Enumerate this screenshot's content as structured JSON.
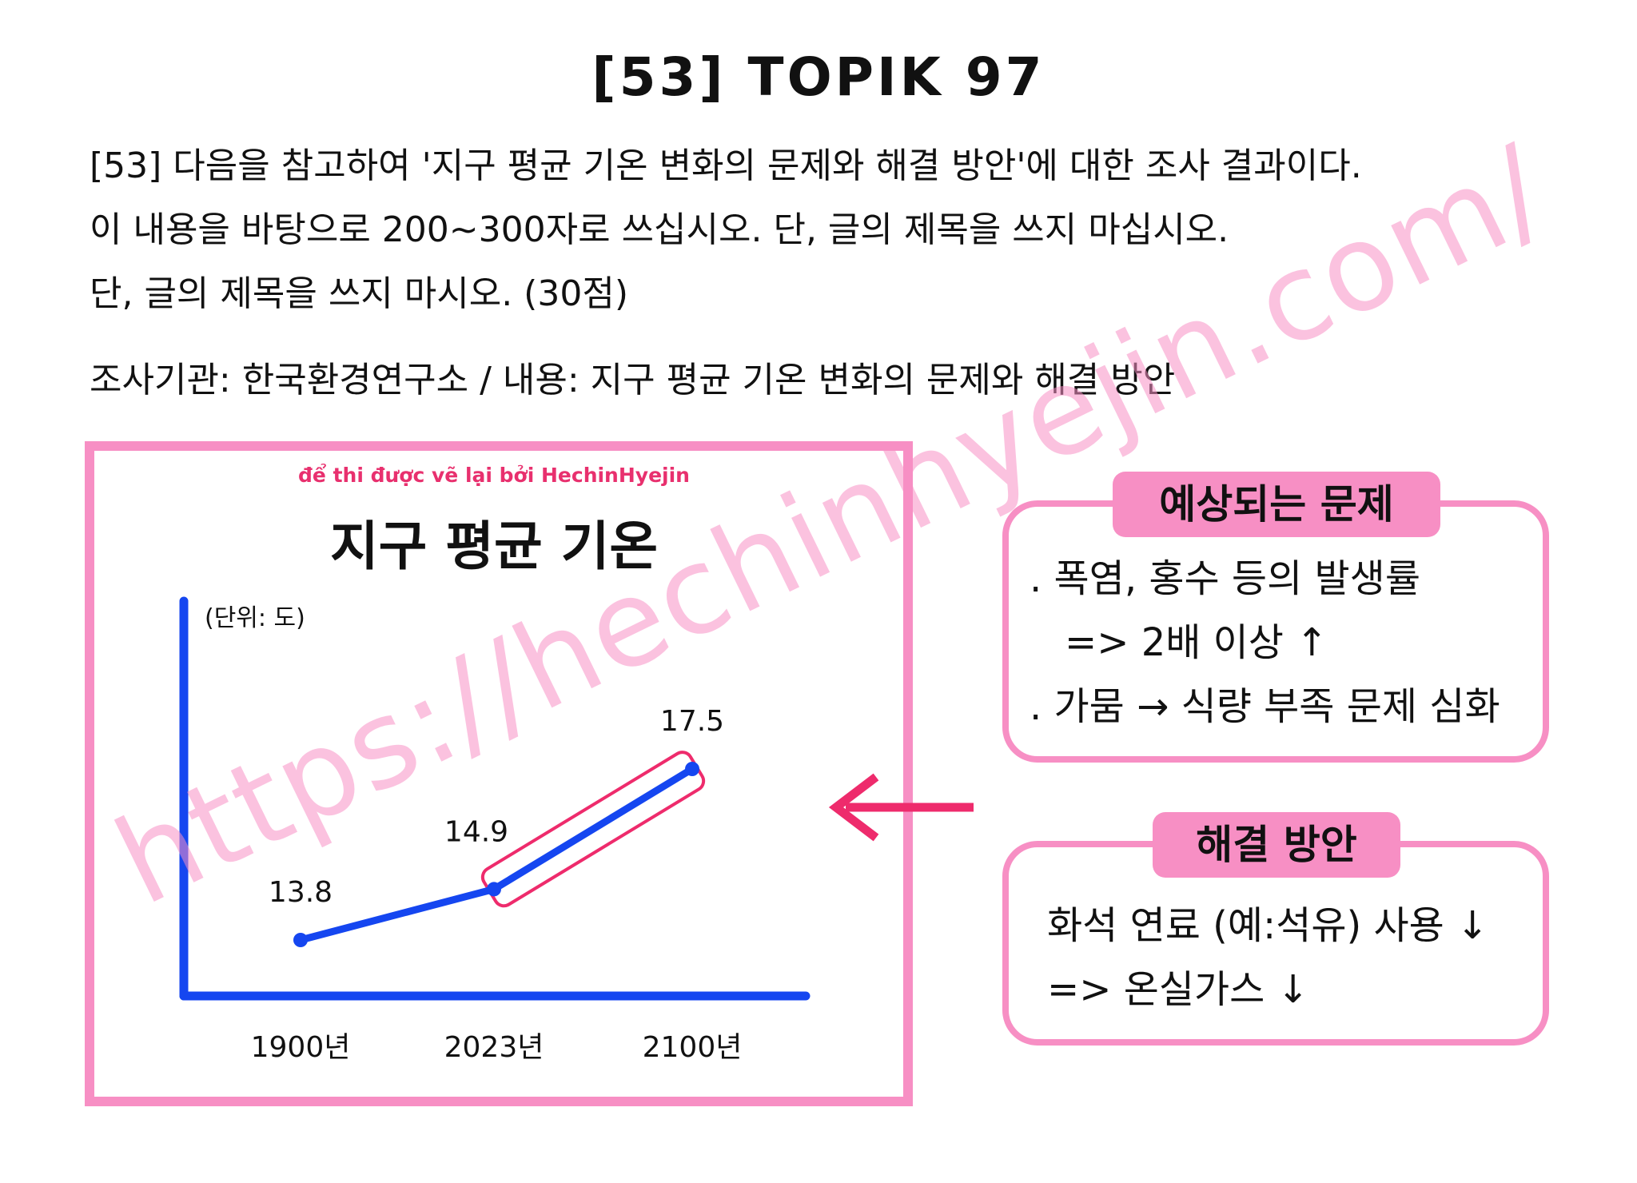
{
  "page_title": "[53] TOPIK 97",
  "question_lines": [
    "[53] 다음을 참고하여 '지구 평균 기온 변화의 문제와 해결 방안'에 대한 조사 결과이다.",
    "이 내용을 바탕으로 200~300자로 쓰십시오. 단, 글의 제목을 쓰지 마십시오.",
    "단, 글의 제목을 쓰지 마시오. (30점)"
  ],
  "source_line": "조사기관: 한국환경연구소 / 내용: 지구 평균 기온 변화의 문제와 해결 방안",
  "credit": "để thi được vẽ lại bởi HechinHyejin",
  "chart_data": {
    "type": "line",
    "title": "지구 평균 기온",
    "ylabel": "(단위: 도)",
    "xlabel": "",
    "categories": [
      "1900년",
      "2023년",
      "2100년"
    ],
    "series": [
      {
        "values": [
          13.8,
          14.9,
          17.5
        ]
      }
    ],
    "data_labels": [
      "13.8",
      "14.9",
      "17.5"
    ],
    "highlight_segment": [
      "2023년",
      "2100년"
    ],
    "grid": false,
    "colors": {
      "line": "#1546f0",
      "highlight": "#ee2b6c",
      "frame": "#f78fc4"
    }
  },
  "problem_box": {
    "header": "예상되는 문제",
    "lines": [
      ". 폭염, 홍수 등의 발생률",
      "=> 2배 이상 ↑",
      ". 가뭄 → 식량 부족 문제 심화"
    ]
  },
  "solution_box": {
    "header": "해결 방안",
    "lines": [
      "화석 연료 (예:석유) 사용 ↓",
      "=> 온실가스 ↓"
    ]
  },
  "watermark": "https://hechinhyejin.com/",
  "arrow_color": "#ee2b6c"
}
